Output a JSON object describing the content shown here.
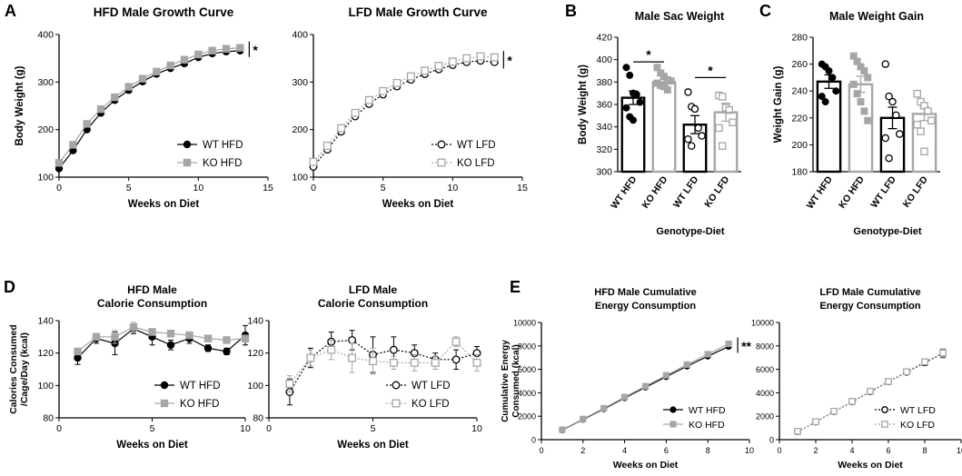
{
  "figure": {
    "panel_labels": {
      "A": "A",
      "B": "B",
      "C": "C",
      "D": "D",
      "E": "E"
    }
  },
  "chart_data": [
    {
      "id": "A1",
      "type": "line",
      "title": "HFD Male Growth Curve",
      "xlabel": "Weeks on Diet",
      "ylabel": "Body Weight (g)",
      "xlim": [
        0,
        15
      ],
      "ylim": [
        100,
        400
      ],
      "xticks": [
        0,
        5,
        10,
        15
      ],
      "yticks": [
        100,
        200,
        300,
        400
      ],
      "x": [
        0,
        1,
        2,
        3,
        4,
        5,
        6,
        7,
        8,
        9,
        10,
        11,
        12,
        13
      ],
      "series": [
        {
          "name": "WT HFD",
          "color": "#000000",
          "marker": "filled-circle",
          "line": "solid",
          "values": [
            118,
            156,
            200,
            235,
            262,
            283,
            301,
            317,
            329,
            339,
            352,
            360,
            364,
            366
          ]
        },
        {
          "name": "KO HFD",
          "color": "#a6a6a6",
          "marker": "filled-square",
          "line": "solid",
          "values": [
            130,
            168,
            212,
            243,
            268,
            290,
            307,
            322,
            335,
            347,
            358,
            366,
            370,
            372
          ]
        }
      ],
      "annotation": "*",
      "legend": "bottom-right"
    },
    {
      "id": "A2",
      "type": "line",
      "title": "LFD Male Growth Curve",
      "xlabel": "Weeks on Diet",
      "ylabel": "",
      "xlim": [
        0,
        15
      ],
      "ylim": [
        100,
        400
      ],
      "xticks": [
        0,
        5,
        10,
        15
      ],
      "yticks": [
        100,
        200,
        300,
        400
      ],
      "x": [
        0,
        1,
        2,
        3,
        4,
        5,
        6,
        7,
        8,
        9,
        10,
        11,
        12,
        13
      ],
      "series": [
        {
          "name": "WT LFD",
          "color": "#000000",
          "marker": "open-circle",
          "line": "dotted",
          "values": [
            122,
            158,
            196,
            228,
            254,
            274,
            291,
            305,
            317,
            327,
            336,
            342,
            345,
            342
          ]
        },
        {
          "name": "KO LFD",
          "color": "#a6a6a6",
          "marker": "open-square",
          "line": "dotted",
          "values": [
            132,
            166,
            203,
            235,
            262,
            281,
            298,
            312,
            324,
            334,
            343,
            350,
            354,
            352
          ]
        }
      ],
      "annotation": "*",
      "legend": "bottom-right"
    },
    {
      "id": "B",
      "type": "bar",
      "title": "Male Sac Weight",
      "xlabel": "Genotype-Diet",
      "ylabel": "Body Weight (g)",
      "ylim": [
        300,
        420
      ],
      "yticks": [
        300,
        320,
        340,
        360,
        380,
        400,
        420
      ],
      "categories": [
        "WT HFD",
        "KO HFD",
        "WT LFD",
        "KO LFD"
      ],
      "values": [
        366,
        380,
        342,
        353
      ],
      "errors": [
        6,
        3,
        8,
        8
      ],
      "points": [
        [
          393,
          386,
          370,
          369,
          362,
          357,
          349,
          346
        ],
        [
          393,
          388,
          385,
          382,
          381,
          379,
          377,
          376,
          373
        ],
        [
          371,
          358,
          356,
          339,
          332,
          329,
          323
        ],
        [
          368,
          367,
          357,
          355,
          344,
          339,
          323
        ]
      ],
      "bar_colors": [
        "#000000",
        "#a6a6a6",
        "#000000",
        "#a6a6a6"
      ],
      "annotations": [
        "*",
        "*"
      ]
    },
    {
      "id": "C",
      "type": "bar",
      "title": "Male Weight Gain",
      "xlabel": "Genotype-Diet",
      "ylabel": "Weight Gain (g)",
      "ylim": [
        180,
        280
      ],
      "yticks": [
        180,
        200,
        220,
        240,
        260,
        280
      ],
      "categories": [
        "WT HFD",
        "KO HFD",
        "WT LFD",
        "KO LFD"
      ],
      "values": [
        247,
        245,
        220,
        223
      ],
      "errors": [
        5,
        6,
        8,
        5
      ],
      "points": [
        [
          260,
          258,
          255,
          250,
          240,
          236,
          232
        ],
        [
          266,
          262,
          258,
          255,
          250,
          245,
          238,
          232,
          225,
          218
        ],
        [
          260,
          236,
          232,
          222,
          208,
          205,
          190
        ],
        [
          238,
          232,
          229,
          225,
          218,
          215,
          210,
          195
        ]
      ],
      "bar_colors": [
        "#000000",
        "#a6a6a6",
        "#000000",
        "#a6a6a6"
      ]
    },
    {
      "id": "D1",
      "type": "line",
      "title": "HFD Male",
      "subtitle": "Calorie Consumption",
      "xlabel": "Weeks on Diet",
      "ylabel": "Calories Consumed /Cage/Day (kcal)",
      "xlim": [
        0,
        10
      ],
      "ylim": [
        80,
        140
      ],
      "xticks": [
        0,
        5,
        10
      ],
      "yticks": [
        80,
        100,
        120,
        140
      ],
      "x": [
        1,
        2,
        3,
        4,
        5,
        6,
        7,
        8,
        9,
        10
      ],
      "series": [
        {
          "name": "WT HFD",
          "color": "#000000",
          "marker": "filled-circle",
          "line": "solid",
          "values": [
            117,
            129,
            126,
            135,
            130,
            125,
            129,
            123,
            121,
            131
          ],
          "errors": [
            4,
            3,
            7,
            3,
            5,
            3,
            3,
            2,
            2,
            6
          ]
        },
        {
          "name": "KO HFD",
          "color": "#a6a6a6",
          "marker": "filled-square",
          "line": "solid",
          "values": [
            121,
            130,
            130,
            136,
            133,
            132,
            131,
            129,
            128,
            129
          ],
          "errors": [
            2,
            2,
            4,
            3,
            2,
            2,
            2,
            2,
            2,
            2
          ]
        }
      ],
      "legend": "bottom-right"
    },
    {
      "id": "D2",
      "type": "line",
      "title": "LFD Male",
      "subtitle": "Calorie Consumption",
      "xlabel": "Weeks on Diet",
      "ylabel": "",
      "xlim": [
        0,
        10
      ],
      "ylim": [
        80,
        140
      ],
      "xticks": [
        0,
        5,
        10
      ],
      "yticks": [
        80,
        100,
        120,
        140
      ],
      "x": [
        1,
        2,
        3,
        4,
        5,
        6,
        7,
        8,
        9,
        10
      ],
      "series": [
        {
          "name": "WT LFD",
          "color": "#000000",
          "marker": "open-circle",
          "line": "dotted",
          "values": [
            96,
            117,
            127,
            128,
            119,
            122,
            120,
            116,
            116,
            120
          ],
          "errors": [
            8,
            6,
            6,
            6,
            11,
            8,
            5,
            4,
            6,
            4
          ]
        },
        {
          "name": "KO LFD",
          "color": "#a6a6a6",
          "marker": "open-square",
          "line": "dotted",
          "values": [
            101,
            117,
            122,
            117,
            115,
            114,
            114,
            114,
            127,
            114
          ],
          "errors": [
            5,
            5,
            6,
            9,
            8,
            4,
            5,
            4,
            3,
            5
          ]
        }
      ],
      "legend": "bottom-right"
    },
    {
      "id": "E1",
      "type": "line",
      "title": "HFD Male Cumulative",
      "subtitle": "Energy Consumption",
      "xlabel": "Weeks on Diet",
      "ylabel": "Cumulative Energy Consumed (kcal)",
      "xlim": [
        0,
        10
      ],
      "ylim": [
        0,
        10000
      ],
      "xticks": [
        0,
        2,
        4,
        6,
        8,
        10
      ],
      "yticks": [
        0,
        2000,
        4000,
        6000,
        8000,
        10000
      ],
      "x": [
        1,
        2,
        3,
        4,
        5,
        6,
        7,
        8,
        9
      ],
      "series": [
        {
          "name": "WT HFD",
          "color": "#000000",
          "marker": "filled-circle",
          "line": "solid",
          "values": [
            820,
            1720,
            2620,
            3560,
            4470,
            5370,
            6270,
            7120,
            7950
          ]
        },
        {
          "name": "KO HFD",
          "color": "#a6a6a6",
          "marker": "filled-square",
          "line": "solid",
          "values": [
            850,
            1760,
            2680,
            3630,
            4560,
            5490,
            6410,
            7290,
            8180
          ]
        }
      ],
      "annotation": "**",
      "legend": "bottom-right"
    },
    {
      "id": "E2",
      "type": "line",
      "title": "LFD Male Cumulative",
      "subtitle": "Energy Consumption",
      "xlabel": "Weeks on Diet",
      "ylabel": "",
      "xlim": [
        0,
        10
      ],
      "ylim": [
        0,
        10000
      ],
      "xticks": [
        0,
        2,
        4,
        6,
        8,
        10
      ],
      "yticks": [
        0,
        2000,
        4000,
        6000,
        8000,
        10000
      ],
      "x": [
        1,
        2,
        3,
        4,
        5,
        6,
        7,
        8,
        9
      ],
      "series": [
        {
          "name": "WT LFD",
          "color": "#000000",
          "marker": "open-circle",
          "line": "dotted",
          "values": [
            690,
            1510,
            2390,
            3230,
            4090,
            4940,
            5750,
            6580,
            7350
          ],
          "errors": [
            40,
            60,
            80,
            100,
            120,
            150,
            170,
            250,
            350
          ]
        },
        {
          "name": "KO LFD",
          "color": "#a6a6a6",
          "marker": "open-square",
          "line": "dotted",
          "values": [
            710,
            1530,
            2420,
            3260,
            4130,
            4960,
            5800,
            6640,
            7400
          ],
          "errors": [
            40,
            60,
            80,
            100,
            120,
            150,
            170,
            250,
            350
          ]
        }
      ],
      "legend": "bottom-right"
    }
  ]
}
